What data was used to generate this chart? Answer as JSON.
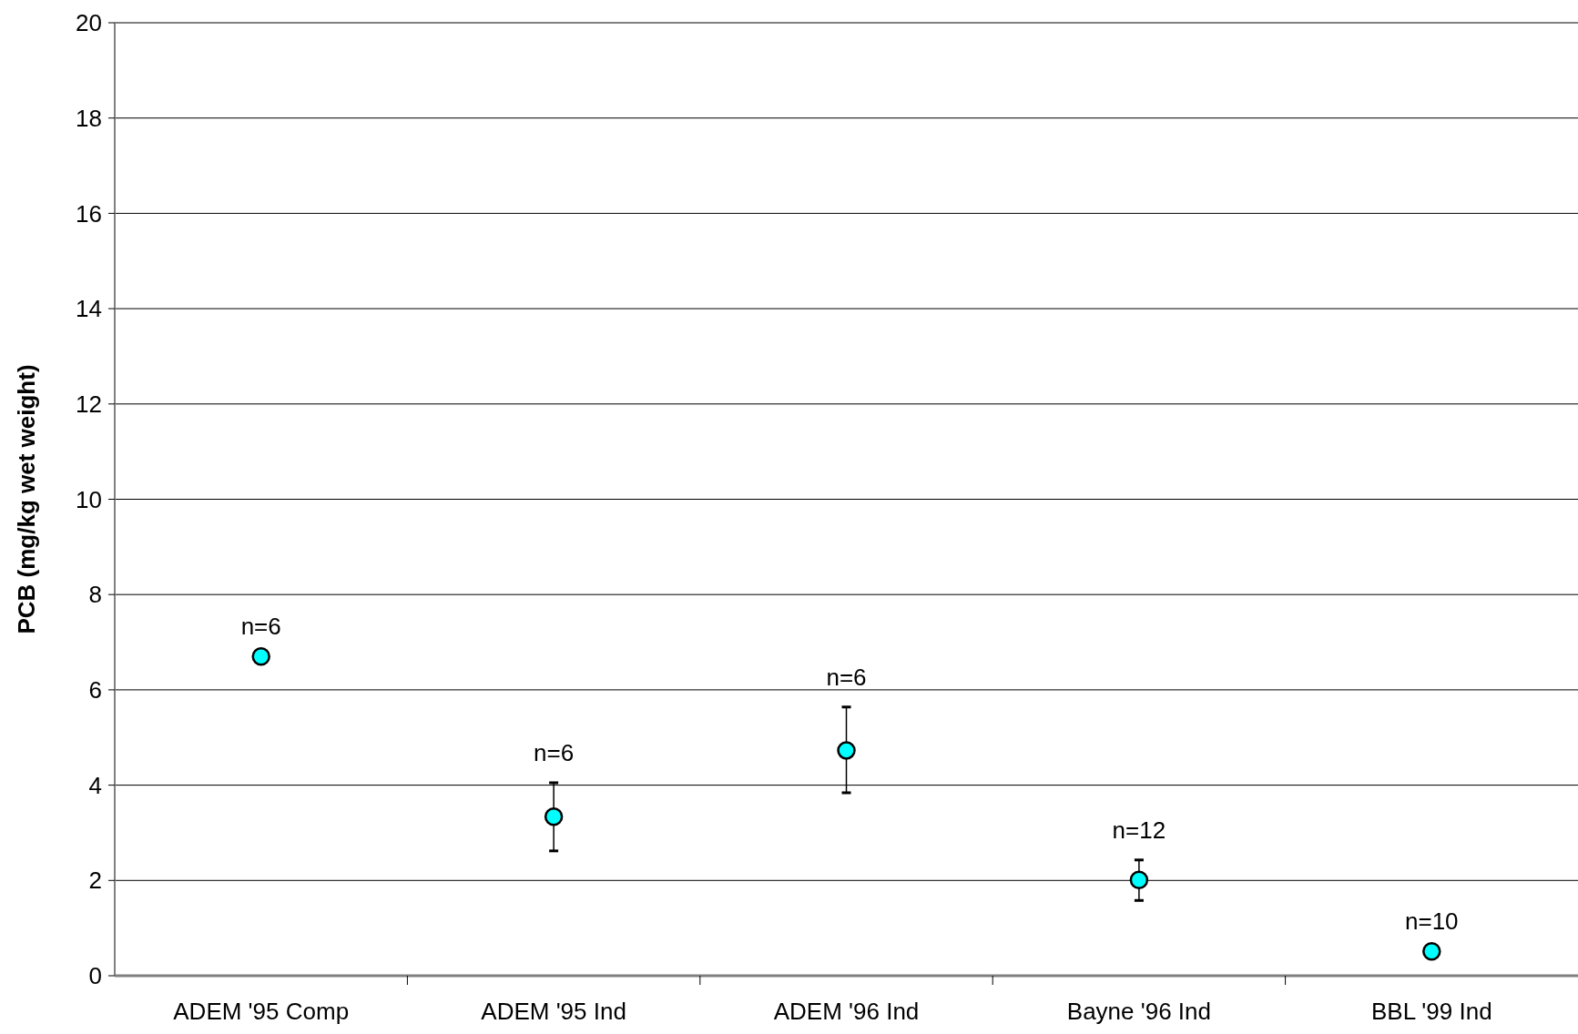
{
  "chart_data": {
    "type": "scatter",
    "ylabel": "PCB (mg/kg wet weight)",
    "categories": [
      "ADEM '95 Comp",
      "ADEM '95 Ind",
      "ADEM '96 Ind",
      "Bayne '96 Ind",
      "BBL '99 Ind"
    ],
    "series": [
      {
        "color": "#00ffff",
        "values": [
          6.7,
          3.34,
          4.73,
          2.01,
          0.51
        ],
        "errors": [
          null,
          [
            2.62,
            4.05
          ],
          [
            3.84,
            5.64
          ],
          [
            1.58,
            2.43
          ],
          null
        ]
      }
    ],
    "ylim": [
      0,
      20
    ],
    "yticks": [
      0,
      2,
      4,
      6,
      8,
      10,
      12,
      14,
      16,
      18,
      20
    ],
    "grid": "y",
    "marker": "circle",
    "annotations": [
      {
        "text": "n=6",
        "x": "ADEM '95 Comp",
        "y": 6.7
      },
      {
        "text": "n=6",
        "x": "ADEM '95 Ind",
        "y": 4.05
      },
      {
        "text": "n=6",
        "x": "ADEM '96 Ind",
        "y": 5.64
      },
      {
        "text": "n=12",
        "x": "Bayne '96 Ind",
        "y": 2.43
      },
      {
        "text": "n=10",
        "x": "BBL '99 Ind",
        "y": 0.51
      }
    ]
  }
}
